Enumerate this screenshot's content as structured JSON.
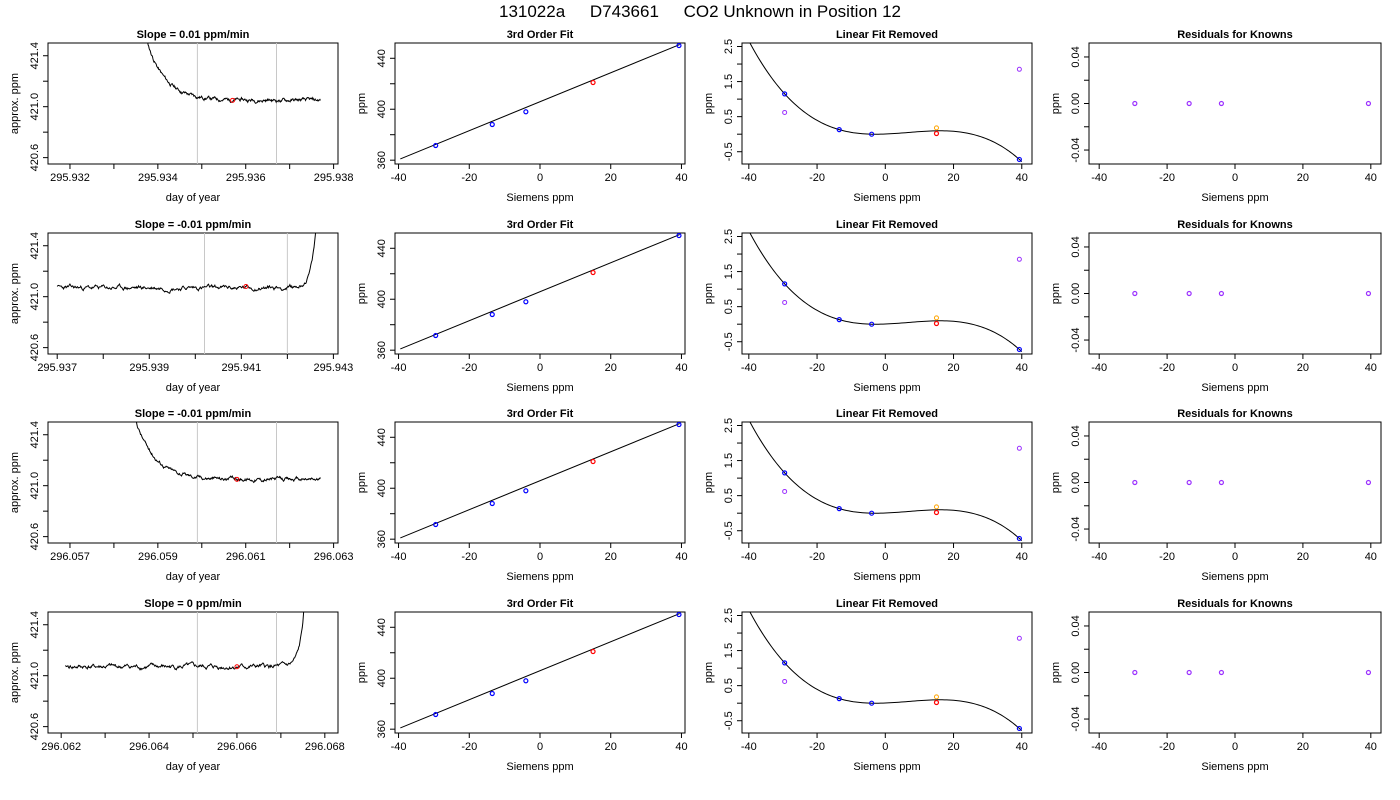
{
  "title": {
    "run_id": "131022a",
    "tank_id": "D743661",
    "description": "CO2 Unknown in Position  12"
  },
  "colors": {
    "trace": "#000000",
    "marker_lines": "#c8c8c8",
    "known_points": "#0000ff",
    "unknown_point": "#ff0000",
    "residual_points": "#9b30ff",
    "residual_unknown": "#ffa500",
    "axis": "#000000"
  },
  "chart_data": [
    {
      "type": "line",
      "title": "Slope =  0.01  ppm/min",
      "xlabel": "day of year",
      "ylabel": "approx. ppm",
      "xlim": [
        295.9315,
        295.9381
      ],
      "ylim": [
        420.55,
        421.5
      ],
      "xticks": [
        "295.932",
        "295.934",
        "295.936",
        "295.938"
      ],
      "xtick_values": [
        295.932,
        295.934,
        295.936,
        295.938
      ],
      "xminor": [
        295.933,
        295.935,
        295.937
      ],
      "yticks": [
        "420.6",
        "421.0",
        "421.4"
      ],
      "ytick_values": [
        420.6,
        421.0,
        421.4
      ],
      "yminor": [
        420.8,
        421.2
      ],
      "vlines": [
        295.9349,
        295.9367
      ],
      "unknown_point": {
        "x": 295.9357,
        "y": 421.05
      },
      "series_start": 295.9331,
      "series_end": 295.9377,
      "spike": "start",
      "level": 421.05,
      "noise": 0.012,
      "seed": 11
    },
    {
      "type": "scatter",
      "title": "3rd Order Fit",
      "xlabel": "Siemens ppm",
      "ylabel": "ppm",
      "xlim": [
        -41,
        41
      ],
      "ylim": [
        357,
        452
      ],
      "xticks": [
        "-40",
        "-20",
        "0",
        "20",
        "40"
      ],
      "xtick_values": [
        -40,
        -20,
        0,
        20,
        40
      ],
      "yticks": [
        "360",
        "400",
        "440"
      ],
      "ytick_values": [
        360,
        400,
        440
      ],
      "yminor": [
        380,
        420
      ],
      "fit_line": [
        [
          -39.5,
          361.0
        ],
        [
          39.5,
          450.8
        ]
      ],
      "points_known": [
        {
          "x": -29.5,
          "y": 371.5
        },
        {
          "x": -13.5,
          "y": 388.0
        },
        {
          "x": -4.0,
          "y": 398.0
        },
        {
          "x": 39.3,
          "y": 450.0
        }
      ],
      "point_unknown": {
        "x": 15.0,
        "y": 421.0
      }
    },
    {
      "type": "scatter",
      "title": "Linear Fit Removed",
      "xlabel": "Siemens ppm",
      "ylabel": "ppm",
      "xlim": [
        -42,
        43
      ],
      "ylim": [
        -0.85,
        2.6
      ],
      "xticks": [
        "-40",
        "-20",
        "0",
        "20",
        "40"
      ],
      "xtick_values": [
        -40,
        -20,
        0,
        20,
        40
      ],
      "yticks": [
        "-0.5",
        "0.5",
        "1.5",
        "2.5"
      ],
      "ytick_values": [
        -0.5,
        0.5,
        1.5,
        2.5
      ],
      "yminor": [
        0,
        1,
        2
      ],
      "curve_domain": [
        -40,
        40
      ],
      "points_known": [
        {
          "x": -29.5,
          "y": 1.15
        },
        {
          "x": -13.5,
          "y": 0.13
        },
        {
          "x": -4.0,
          "y": 0.0
        },
        {
          "x": 39.3,
          "y": -0.72
        }
      ],
      "point_unknown": {
        "x": 15.0,
        "y": 0.02
      },
      "points_residual": [
        {
          "x": -29.5,
          "y": 0.62
        },
        {
          "x": 39.3,
          "y": 1.85
        }
      ],
      "point_residual_unknown": {
        "x": 15.0,
        "y": 0.18
      }
    },
    {
      "type": "scatter",
      "title": "Residuals for Knowns",
      "xlabel": "Siemens ppm",
      "ylabel": "ppm",
      "xlim": [
        -43,
        43
      ],
      "ylim": [
        -0.052,
        0.052
      ],
      "xticks": [
        "-40",
        "-20",
        "0",
        "20",
        "40"
      ],
      "xtick_values": [
        -40,
        -20,
        0,
        20,
        40
      ],
      "yticks": [
        "-0.04",
        "0.00",
        "0.04"
      ],
      "ytick_values": [
        -0.04,
        0.0,
        0.04
      ],
      "yminor": [
        -0.02,
        0.02
      ],
      "points": [
        {
          "x": -29.5,
          "y": 0.0
        },
        {
          "x": -13.5,
          "y": 0.0
        },
        {
          "x": -4.0,
          "y": 0.0
        },
        {
          "x": 39.3,
          "y": 0.0
        }
      ]
    },
    {
      "type": "line",
      "title": "Slope =  -0.01  ppm/min",
      "xlabel": "day of year",
      "ylabel": "approx. ppm",
      "xlim": [
        295.9368,
        295.9431
      ],
      "ylim": [
        420.55,
        421.5
      ],
      "xticks": [
        "295.937",
        "295.939",
        "295.941",
        "295.943"
      ],
      "xtick_values": [
        295.937,
        295.939,
        295.941,
        295.943
      ],
      "xminor": [
        295.938,
        295.94,
        295.942
      ],
      "yticks": [
        "420.6",
        "421.0",
        "421.4"
      ],
      "ytick_values": [
        420.6,
        421.0,
        421.4
      ],
      "yminor": [
        420.8,
        421.2
      ],
      "vlines": [
        295.9402,
        295.942
      ],
      "unknown_point": {
        "x": 295.9411,
        "y": 421.08
      },
      "series_start": 295.937,
      "series_end": 295.9428,
      "spike": "end",
      "level": 421.07,
      "noise": 0.015,
      "seed": 23
    },
    {
      "type": "scatter",
      "title": "3rd Order Fit",
      "xlabel": "Siemens ppm",
      "ylabel": "ppm",
      "xlim": [
        -41,
        41
      ],
      "ylim": [
        357,
        452
      ],
      "xticks": [
        "-40",
        "-20",
        "0",
        "20",
        "40"
      ],
      "xtick_values": [
        -40,
        -20,
        0,
        20,
        40
      ],
      "yticks": [
        "360",
        "400",
        "440"
      ],
      "ytick_values": [
        360,
        400,
        440
      ],
      "yminor": [
        380,
        420
      ],
      "fit_line": [
        [
          -39.5,
          361.0
        ],
        [
          39.5,
          450.8
        ]
      ],
      "points_known": [
        {
          "x": -29.5,
          "y": 371.5
        },
        {
          "x": -13.5,
          "y": 388.0
        },
        {
          "x": -4.0,
          "y": 398.0
        },
        {
          "x": 39.3,
          "y": 450.0
        }
      ],
      "point_unknown": {
        "x": 15.0,
        "y": 421.0
      }
    },
    {
      "type": "scatter",
      "title": "Linear Fit Removed",
      "xlabel": "Siemens ppm",
      "ylabel": "ppm",
      "xlim": [
        -42,
        43
      ],
      "ylim": [
        -0.85,
        2.6
      ],
      "xticks": [
        "-40",
        "-20",
        "0",
        "20",
        "40"
      ],
      "xtick_values": [
        -40,
        -20,
        0,
        20,
        40
      ],
      "yticks": [
        "-0.5",
        "0.5",
        "1.5",
        "2.5"
      ],
      "ytick_values": [
        -0.5,
        0.5,
        1.5,
        2.5
      ],
      "yminor": [
        0,
        1,
        2
      ],
      "curve_domain": [
        -40,
        40
      ],
      "points_known": [
        {
          "x": -29.5,
          "y": 1.15
        },
        {
          "x": -13.5,
          "y": 0.13
        },
        {
          "x": -4.0,
          "y": 0.0
        },
        {
          "x": 39.3,
          "y": -0.72
        }
      ],
      "point_unknown": {
        "x": 15.0,
        "y": 0.02
      },
      "points_residual": [
        {
          "x": -29.5,
          "y": 0.62
        },
        {
          "x": 39.3,
          "y": 1.85
        }
      ],
      "point_residual_unknown": {
        "x": 15.0,
        "y": 0.18
      }
    },
    {
      "type": "scatter",
      "title": "Residuals for Knowns",
      "xlabel": "Siemens ppm",
      "ylabel": "ppm",
      "xlim": [
        -43,
        43
      ],
      "ylim": [
        -0.052,
        0.052
      ],
      "xticks": [
        "-40",
        "-20",
        "0",
        "20",
        "40"
      ],
      "xtick_values": [
        -40,
        -20,
        0,
        20,
        40
      ],
      "yticks": [
        "-0.04",
        "0.00",
        "0.04"
      ],
      "ytick_values": [
        -0.04,
        0.0,
        0.04
      ],
      "yminor": [
        -0.02,
        0.02
      ],
      "points": [
        {
          "x": -29.5,
          "y": 0.0
        },
        {
          "x": -13.5,
          "y": 0.0
        },
        {
          "x": -4.0,
          "y": 0.0
        },
        {
          "x": 39.3,
          "y": 0.0
        }
      ]
    },
    {
      "type": "line",
      "title": "Slope =  -0.01  ppm/min",
      "xlabel": "day of year",
      "ylabel": "approx. ppm",
      "xlim": [
        296.0565,
        296.0631
      ],
      "ylim": [
        420.55,
        421.5
      ],
      "xticks": [
        "296.057",
        "296.059",
        "296.061",
        "296.063"
      ],
      "xtick_values": [
        296.057,
        296.059,
        296.061,
        296.063
      ],
      "xminor": [
        296.058,
        296.06,
        296.062
      ],
      "yticks": [
        "420.6",
        "421.0",
        "421.4"
      ],
      "ytick_values": [
        420.6,
        421.0,
        421.4
      ],
      "yminor": [
        420.8,
        421.2
      ],
      "vlines": [
        296.0599,
        296.0617
      ],
      "unknown_point": {
        "x": 296.0608,
        "y": 421.05
      },
      "series_start": 296.0578,
      "series_end": 296.0627,
      "spike": "start",
      "level": 421.05,
      "noise": 0.012,
      "seed": 37
    },
    {
      "type": "scatter",
      "title": "3rd Order Fit",
      "xlabel": "Siemens ppm",
      "ylabel": "ppm",
      "xlim": [
        -41,
        41
      ],
      "ylim": [
        357,
        452
      ],
      "xticks": [
        "-40",
        "-20",
        "0",
        "20",
        "40"
      ],
      "xtick_values": [
        -40,
        -20,
        0,
        20,
        40
      ],
      "yticks": [
        "360",
        "400",
        "440"
      ],
      "ytick_values": [
        360,
        400,
        440
      ],
      "yminor": [
        380,
        420
      ],
      "fit_line": [
        [
          -39.5,
          361.0
        ],
        [
          39.5,
          450.8
        ]
      ],
      "points_known": [
        {
          "x": -29.5,
          "y": 371.5
        },
        {
          "x": -13.5,
          "y": 388.0
        },
        {
          "x": -4.0,
          "y": 398.0
        },
        {
          "x": 39.3,
          "y": 450.0
        }
      ],
      "point_unknown": {
        "x": 15.0,
        "y": 421.0
      }
    },
    {
      "type": "scatter",
      "title": "Linear Fit Removed",
      "xlabel": "Siemens ppm",
      "ylabel": "ppm",
      "xlim": [
        -42,
        43
      ],
      "ylim": [
        -0.85,
        2.6
      ],
      "xticks": [
        "-40",
        "-20",
        "0",
        "20",
        "40"
      ],
      "xtick_values": [
        -40,
        -20,
        0,
        20,
        40
      ],
      "yticks": [
        "-0.5",
        "0.5",
        "1.5",
        "2.5"
      ],
      "ytick_values": [
        -0.5,
        0.5,
        1.5,
        2.5
      ],
      "yminor": [
        0,
        1,
        2
      ],
      "curve_domain": [
        -40,
        40
      ],
      "points_known": [
        {
          "x": -29.5,
          "y": 1.15
        },
        {
          "x": -13.5,
          "y": 0.13
        },
        {
          "x": -4.0,
          "y": 0.0
        },
        {
          "x": 39.3,
          "y": -0.72
        }
      ],
      "point_unknown": {
        "x": 15.0,
        "y": 0.02
      },
      "points_residual": [
        {
          "x": -29.5,
          "y": 0.62
        },
        {
          "x": 39.3,
          "y": 1.85
        }
      ],
      "point_residual_unknown": {
        "x": 15.0,
        "y": 0.18
      }
    },
    {
      "type": "scatter",
      "title": "Residuals for Knowns",
      "xlabel": "Siemens ppm",
      "ylabel": "ppm",
      "xlim": [
        -43,
        43
      ],
      "ylim": [
        -0.052,
        0.052
      ],
      "xticks": [
        "-40",
        "-20",
        "0",
        "20",
        "40"
      ],
      "xtick_values": [
        -40,
        -20,
        0,
        20,
        40
      ],
      "yticks": [
        "-0.04",
        "0.00",
        "0.04"
      ],
      "ytick_values": [
        -0.04,
        0.0,
        0.04
      ],
      "yminor": [
        -0.02,
        0.02
      ],
      "points": [
        {
          "x": -29.5,
          "y": 0.0
        },
        {
          "x": -13.5,
          "y": 0.0
        },
        {
          "x": -4.0,
          "y": 0.0
        },
        {
          "x": 39.3,
          "y": 0.0
        }
      ]
    },
    {
      "type": "line",
      "title": "Slope =  0  ppm/min",
      "xlabel": "day of year",
      "ylabel": "approx. ppm",
      "xlim": [
        296.0617,
        296.0683
      ],
      "ylim": [
        420.55,
        421.5
      ],
      "xticks": [
        "296.062",
        "296.064",
        "296.066",
        "296.068"
      ],
      "xtick_values": [
        296.062,
        296.064,
        296.066,
        296.068
      ],
      "xminor": [
        296.063,
        296.065,
        296.067
      ],
      "yticks": [
        "420.6",
        "421.0",
        "421.4"
      ],
      "ytick_values": [
        420.6,
        421.0,
        421.4
      ],
      "yminor": [
        420.8,
        421.2
      ],
      "vlines": [
        296.0651,
        296.0669
      ],
      "unknown_point": {
        "x": 296.066,
        "y": 421.07
      },
      "series_start": 296.0621,
      "series_end": 296.0677,
      "spike": "end",
      "level": 421.07,
      "noise": 0.015,
      "seed": 41
    },
    {
      "type": "scatter",
      "title": "3rd Order Fit",
      "xlabel": "Siemens ppm",
      "ylabel": "ppm",
      "xlim": [
        -41,
        41
      ],
      "ylim": [
        357,
        452
      ],
      "xticks": [
        "-40",
        "-20",
        "0",
        "20",
        "40"
      ],
      "xtick_values": [
        -40,
        -20,
        0,
        20,
        40
      ],
      "yticks": [
        "360",
        "400",
        "440"
      ],
      "ytick_values": [
        360,
        400,
        440
      ],
      "yminor": [
        380,
        420
      ],
      "fit_line": [
        [
          -39.5,
          361.0
        ],
        [
          39.5,
          450.8
        ]
      ],
      "points_known": [
        {
          "x": -29.5,
          "y": 371.5
        },
        {
          "x": -13.5,
          "y": 388.0
        },
        {
          "x": -4.0,
          "y": 398.0
        },
        {
          "x": 39.3,
          "y": 450.0
        }
      ],
      "point_unknown": {
        "x": 15.0,
        "y": 421.0
      }
    },
    {
      "type": "scatter",
      "title": "Linear Fit Removed",
      "xlabel": "Siemens ppm",
      "ylabel": "ppm",
      "xlim": [
        -42,
        43
      ],
      "ylim": [
        -0.85,
        2.6
      ],
      "xticks": [
        "-40",
        "-20",
        "0",
        "20",
        "40"
      ],
      "xtick_values": [
        -40,
        -20,
        0,
        20,
        40
      ],
      "yticks": [
        "-0.5",
        "0.5",
        "1.5",
        "2.5"
      ],
      "ytick_values": [
        -0.5,
        0.5,
        1.5,
        2.5
      ],
      "yminor": [
        0,
        1,
        2
      ],
      "curve_domain": [
        -40,
        40
      ],
      "points_known": [
        {
          "x": -29.5,
          "y": 1.15
        },
        {
          "x": -13.5,
          "y": 0.13
        },
        {
          "x": -4.0,
          "y": 0.0
        },
        {
          "x": 39.3,
          "y": -0.72
        }
      ],
      "point_unknown": {
        "x": 15.0,
        "y": 0.02
      },
      "points_residual": [
        {
          "x": -29.5,
          "y": 0.62
        },
        {
          "x": 39.3,
          "y": 1.85
        }
      ],
      "point_residual_unknown": {
        "x": 15.0,
        "y": 0.18
      }
    },
    {
      "type": "scatter",
      "title": "Residuals for Knowns",
      "xlabel": "Siemens ppm",
      "ylabel": "ppm",
      "xlim": [
        -43,
        43
      ],
      "ylim": [
        -0.052,
        0.052
      ],
      "xticks": [
        "-40",
        "-20",
        "0",
        "20",
        "40"
      ],
      "xtick_values": [
        -40,
        -20,
        0,
        20,
        40
      ],
      "yticks": [
        "-0.04",
        "0.00",
        "0.04"
      ],
      "ytick_values": [
        -0.04,
        0.0,
        0.04
      ],
      "yminor": [
        -0.02,
        0.02
      ],
      "points": [
        {
          "x": -29.5,
          "y": 0.0
        },
        {
          "x": -13.5,
          "y": 0.0
        },
        {
          "x": -4.0,
          "y": 0.0
        },
        {
          "x": 39.3,
          "y": 0.0
        }
      ]
    }
  ]
}
